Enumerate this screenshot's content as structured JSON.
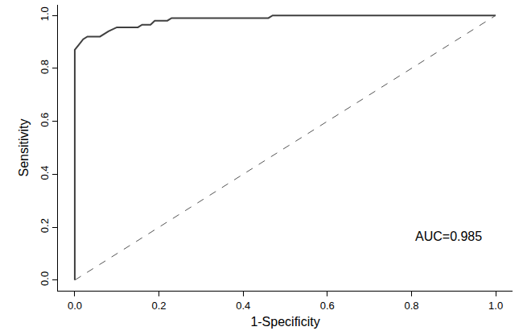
{
  "chart_data": {
    "type": "line",
    "x_label": "1-Specificity",
    "y_label": "Sensitivity",
    "annotations": [
      {
        "text": "AUC=0.985"
      }
    ],
    "series": [
      {
        "type": "line",
        "line_style": "solid",
        "color": "#404040",
        "x": [
          0,
          0,
          0,
          0.01,
          0.02,
          0.03,
          0.06,
          0.08,
          0.1,
          0.15,
          0.16,
          0.18,
          0.19,
          0.22,
          0.23,
          0.46,
          0.47,
          1.0
        ],
        "values": [
          0,
          0.44,
          0.87,
          0.89,
          0.91,
          0.92,
          0.92,
          0.94,
          0.955,
          0.955,
          0.965,
          0.965,
          0.98,
          0.98,
          0.99,
          0.99,
          1.0,
          1.0
        ]
      },
      {
        "type": "line",
        "line_style": "dashed",
        "color": "#555555",
        "x": [
          0,
          1
        ],
        "values": [
          0,
          1
        ]
      }
    ],
    "xlim": [
      -0.04,
      1.04
    ],
    "ylim": [
      -0.04,
      1.04
    ],
    "xticks": [
      {
        "value": 0,
        "label": "0.0"
      },
      0.2,
      0.4,
      0.6,
      0.8,
      {
        "value": 1,
        "label": "1.0"
      }
    ],
    "yticks": [
      {
        "value": 0,
        "label": "0.0"
      },
      0.2,
      0.4,
      0.6,
      0.8,
      {
        "value": 1,
        "label": "1.0"
      }
    ],
    "grid": false
  }
}
